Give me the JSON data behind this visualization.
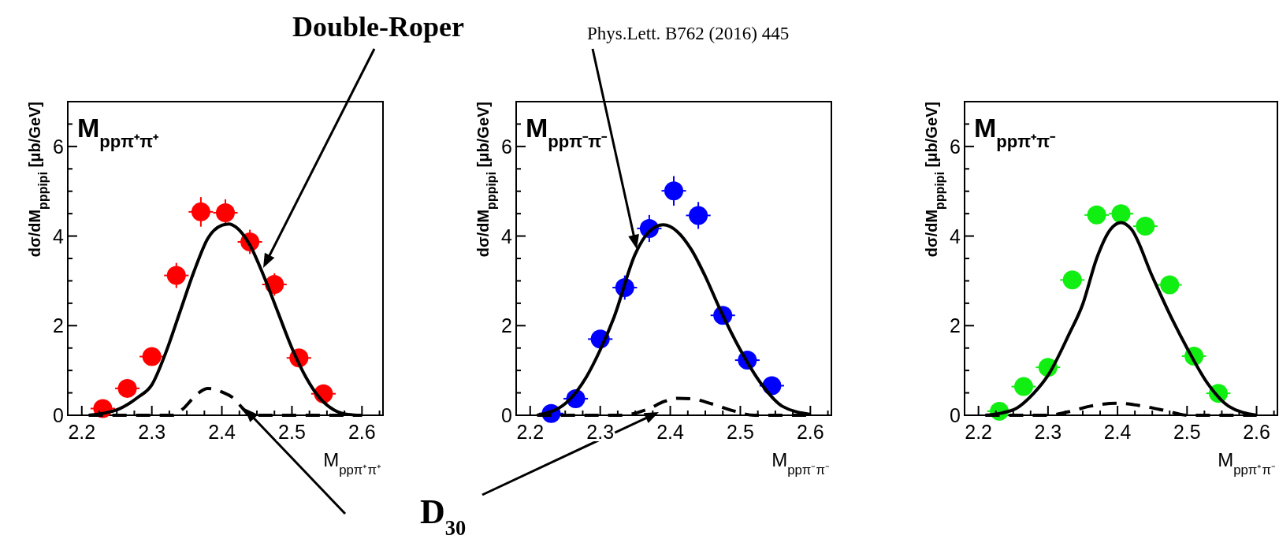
{
  "chart_data": [
    {
      "type": "scatter",
      "title": "M$_{ppπ⁺π⁺}$",
      "xlabel": "M$_{ppπ⁺π⁺}$",
      "ylabel": "dσ/dM$_{pppipi}$ [μb/GeV]",
      "xlim": [
        2.18,
        2.63
      ],
      "ylim": [
        0,
        7
      ],
      "xticks": [
        {
          "value": 2.2,
          "label": "2.2"
        },
        {
          "value": 2.225,
          "label": null
        },
        {
          "value": 2.25,
          "label": null
        },
        {
          "value": 2.275,
          "label": null
        },
        {
          "value": 2.3,
          "label": "2.3"
        },
        {
          "value": 2.325,
          "label": null
        },
        {
          "value": 2.35,
          "label": null
        },
        {
          "value": 2.375,
          "label": null
        },
        {
          "value": 2.4,
          "label": "2.4"
        },
        {
          "value": 2.425,
          "label": null
        },
        {
          "value": 2.45,
          "label": null
        },
        {
          "value": 2.475,
          "label": null
        },
        {
          "value": 2.5,
          "label": "2.5"
        },
        {
          "value": 2.525,
          "label": null
        },
        {
          "value": 2.55,
          "label": null
        },
        {
          "value": 2.575,
          "label": null
        },
        {
          "value": 2.6,
          "label": "2.6"
        },
        {
          "value": 2.625,
          "label": null
        }
      ],
      "yticks": [
        0,
        {
          "value": 0.5,
          "label": null
        },
        {
          "value": 1,
          "label": null
        },
        {
          "value": 1.5,
          "label": null
        },
        2,
        {
          "value": 2.5,
          "label": null
        },
        {
          "value": 3,
          "label": null
        },
        {
          "value": 3.5,
          "label": null
        },
        4,
        {
          "value": 4.5,
          "label": null
        },
        {
          "value": 5,
          "label": null
        },
        {
          "value": 5.5,
          "label": null
        },
        6,
        {
          "value": 6.5,
          "label": null
        }
      ],
      "annotations": [
        "Double-Roper",
        "D$_{30}$",
        "Phys.Lett. B762 (2016) 445"
      ],
      "series": [
        {
          "type": "scatter",
          "color": "#ff0000",
          "marker": "circle",
          "x": [
            2.23,
            2.265,
            2.3,
            2.335,
            2.37,
            2.405,
            2.44,
            2.475,
            2.51,
            2.545
          ],
          "values": [
            0.15,
            0.6,
            1.31,
            3.12,
            4.54,
            4.52,
            3.87,
            2.92,
            1.28,
            0.48
          ],
          "errors": [
            0.1,
            0.1,
            0.15,
            0.28,
            0.33,
            0.3,
            0.27,
            0.25,
            0.15,
            0.1
          ],
          "xerrors": [
            0.0175,
            0.0175,
            0.0175,
            0.0175,
            0.0175,
            0.0175,
            0.0175,
            0.0175,
            0.0175,
            0.0175
          ]
        },
        {
          "type": "line",
          "color": "#000000",
          "line_style": "solid",
          "x": [
            2.21,
            2.25,
            2.28,
            2.3,
            2.32,
            2.34,
            2.36,
            2.38,
            2.4,
            2.41,
            2.42,
            2.44,
            2.46,
            2.48,
            2.5,
            2.52,
            2.54,
            2.56,
            2.58,
            2.6
          ],
          "values": [
            0,
            0.12,
            0.4,
            0.68,
            1.4,
            2.3,
            3.2,
            3.95,
            4.24,
            4.27,
            4.2,
            3.8,
            3.1,
            2.3,
            1.5,
            0.85,
            0.38,
            0.12,
            0.02,
            0
          ]
        },
        {
          "type": "line",
          "color": "#000000",
          "line_style": "dashed",
          "x": [
            2.21,
            2.3,
            2.33,
            2.345,
            2.36,
            2.38,
            2.39,
            2.4,
            2.415,
            2.43,
            2.44,
            2.5,
            2.6
          ],
          "values": [
            0,
            0,
            0,
            0.15,
            0.4,
            0.6,
            0.58,
            0.52,
            0.4,
            0.15,
            0,
            0,
            0
          ]
        }
      ]
    },
    {
      "type": "scatter",
      "title": "M$_{ppπ⁻π⁻}$",
      "xlabel": "M$_{ppπ⁻π⁻}$",
      "ylabel": "dσ/dM$_{pppipi}$ [μb/GeV]",
      "xlim": [
        2.18,
        2.63
      ],
      "ylim": [
        0,
        7
      ],
      "xticks": [
        {
          "value": 2.2,
          "label": "2.2"
        },
        {
          "value": 2.225,
          "label": null
        },
        {
          "value": 2.25,
          "label": null
        },
        {
          "value": 2.275,
          "label": null
        },
        {
          "value": 2.3,
          "label": "2.3"
        },
        {
          "value": 2.325,
          "label": null
        },
        {
          "value": 2.35,
          "label": null
        },
        {
          "value": 2.375,
          "label": null
        },
        {
          "value": 2.4,
          "label": "2.4"
        },
        {
          "value": 2.425,
          "label": null
        },
        {
          "value": 2.45,
          "label": null
        },
        {
          "value": 2.475,
          "label": null
        },
        {
          "value": 2.5,
          "label": "2.5"
        },
        {
          "value": 2.525,
          "label": null
        },
        {
          "value": 2.55,
          "label": null
        },
        {
          "value": 2.575,
          "label": null
        },
        {
          "value": 2.6,
          "label": "2.6"
        },
        {
          "value": 2.625,
          "label": null
        }
      ],
      "yticks": [
        0,
        {
          "value": 0.5,
          "label": null
        },
        {
          "value": 1,
          "label": null
        },
        {
          "value": 1.5,
          "label": null
        },
        2,
        {
          "value": 2.5,
          "label": null
        },
        {
          "value": 3,
          "label": null
        },
        {
          "value": 3.5,
          "label": null
        },
        4,
        {
          "value": 4.5,
          "label": null
        },
        {
          "value": 5,
          "label": null
        },
        {
          "value": 5.5,
          "label": null
        },
        6,
        {
          "value": 6.5,
          "label": null
        }
      ],
      "series": [
        {
          "type": "scatter",
          "color": "#0000ff",
          "marker": "circle",
          "x": [
            2.23,
            2.265,
            2.3,
            2.335,
            2.37,
            2.405,
            2.44,
            2.475,
            2.51,
            2.545
          ],
          "values": [
            0.04,
            0.37,
            1.7,
            2.85,
            4.17,
            5.01,
            4.46,
            2.23,
            1.23,
            0.66
          ],
          "errors": [
            0.08,
            0.1,
            0.2,
            0.27,
            0.3,
            0.33,
            0.3,
            0.2,
            0.1,
            0.08
          ],
          "xerrors": [
            0.0175,
            0.0175,
            0.0175,
            0.0175,
            0.0175,
            0.0175,
            0.0175,
            0.0175,
            0.0175,
            0.0175
          ]
        },
        {
          "type": "line",
          "color": "#000000",
          "line_style": "solid",
          "x": [
            2.21,
            2.25,
            2.28,
            2.3,
            2.32,
            2.35,
            2.37,
            2.39,
            2.41,
            2.43,
            2.45,
            2.47,
            2.5,
            2.53,
            2.56,
            2.6
          ],
          "values": [
            0,
            0.26,
            0.85,
            1.46,
            2.2,
            3.6,
            4.1,
            4.25,
            4.1,
            3.7,
            3.1,
            2.4,
            1.46,
            0.7,
            0.2,
            0.02
          ]
        },
        {
          "type": "line",
          "color": "#000000",
          "line_style": "dashed",
          "x": [
            2.21,
            2.3,
            2.33,
            2.37,
            2.39,
            2.41,
            2.43,
            2.46,
            2.49,
            2.52,
            2.6
          ],
          "values": [
            0,
            0,
            0,
            0.15,
            0.3,
            0.38,
            0.37,
            0.25,
            0.1,
            0,
            0
          ]
        }
      ]
    },
    {
      "type": "scatter",
      "title": "M$_{ppπ⁺π⁻}$",
      "xlabel": "M$_{ppπ⁺π⁻}$",
      "ylabel": "dσ/dM$_{pppipi}$ [μb/GeV]",
      "xlim": [
        2.18,
        2.63
      ],
      "ylim": [
        0,
        7
      ],
      "xticks": [
        {
          "value": 2.2,
          "label": "2.2"
        },
        {
          "value": 2.225,
          "label": null
        },
        {
          "value": 2.25,
          "label": null
        },
        {
          "value": 2.275,
          "label": null
        },
        {
          "value": 2.3,
          "label": "2.3"
        },
        {
          "value": 2.325,
          "label": null
        },
        {
          "value": 2.35,
          "label": null
        },
        {
          "value": 2.375,
          "label": null
        },
        {
          "value": 2.4,
          "label": "2.4"
        },
        {
          "value": 2.425,
          "label": null
        },
        {
          "value": 2.45,
          "label": null
        },
        {
          "value": 2.475,
          "label": null
        },
        {
          "value": 2.5,
          "label": "2.5"
        },
        {
          "value": 2.525,
          "label": null
        },
        {
          "value": 2.55,
          "label": null
        },
        {
          "value": 2.575,
          "label": null
        },
        {
          "value": 2.6,
          "label": "2.6"
        },
        {
          "value": 2.625,
          "label": null
        }
      ],
      "yticks": [
        0,
        {
          "value": 0.5,
          "label": null
        },
        {
          "value": 1,
          "label": null
        },
        {
          "value": 1.5,
          "label": null
        },
        2,
        {
          "value": 2.5,
          "label": null
        },
        {
          "value": 3,
          "label": null
        },
        {
          "value": 3.5,
          "label": null
        },
        4,
        {
          "value": 4.5,
          "label": null
        },
        {
          "value": 5,
          "label": null
        },
        {
          "value": 5.5,
          "label": null
        },
        6,
        {
          "value": 6.5,
          "label": null
        }
      ],
      "series": [
        {
          "type": "scatter",
          "color": "#11ee11",
          "marker": "circle",
          "x": [
            2.23,
            2.265,
            2.3,
            2.335,
            2.37,
            2.405,
            2.44,
            2.475,
            2.51,
            2.545
          ],
          "values": [
            0.09,
            0.64,
            1.07,
            3.02,
            4.47,
            4.5,
            4.22,
            2.91,
            1.32,
            0.49
          ],
          "errors": [
            0.05,
            0.05,
            0.06,
            0.08,
            0.1,
            0.1,
            0.1,
            0.08,
            0.06,
            0.05
          ],
          "xerrors": [
            0.0175,
            0.0175,
            0.0175,
            0.0175,
            0.0175,
            0.0175,
            0.0175,
            0.0175,
            0.0175,
            0.0175
          ]
        },
        {
          "type": "line",
          "color": "#000000",
          "line_style": "solid",
          "x": [
            2.21,
            2.25,
            2.28,
            2.3,
            2.33,
            2.35,
            2.37,
            2.39,
            2.405,
            2.42,
            2.45,
            2.48,
            2.5,
            2.53,
            2.56,
            2.6
          ],
          "values": [
            0,
            0.12,
            0.5,
            0.89,
            1.8,
            2.48,
            3.5,
            4.15,
            4.3,
            4.15,
            3.1,
            2.1,
            1.5,
            0.7,
            0.2,
            0
          ]
        },
        {
          "type": "line",
          "color": "#000000",
          "line_style": "dashed",
          "x": [
            2.21,
            2.3,
            2.33,
            2.36,
            2.4,
            2.43,
            2.47,
            2.5,
            2.6
          ],
          "values": [
            0,
            0,
            0.08,
            0.2,
            0.27,
            0.22,
            0.1,
            0,
            0
          ]
        }
      ]
    }
  ]
}
